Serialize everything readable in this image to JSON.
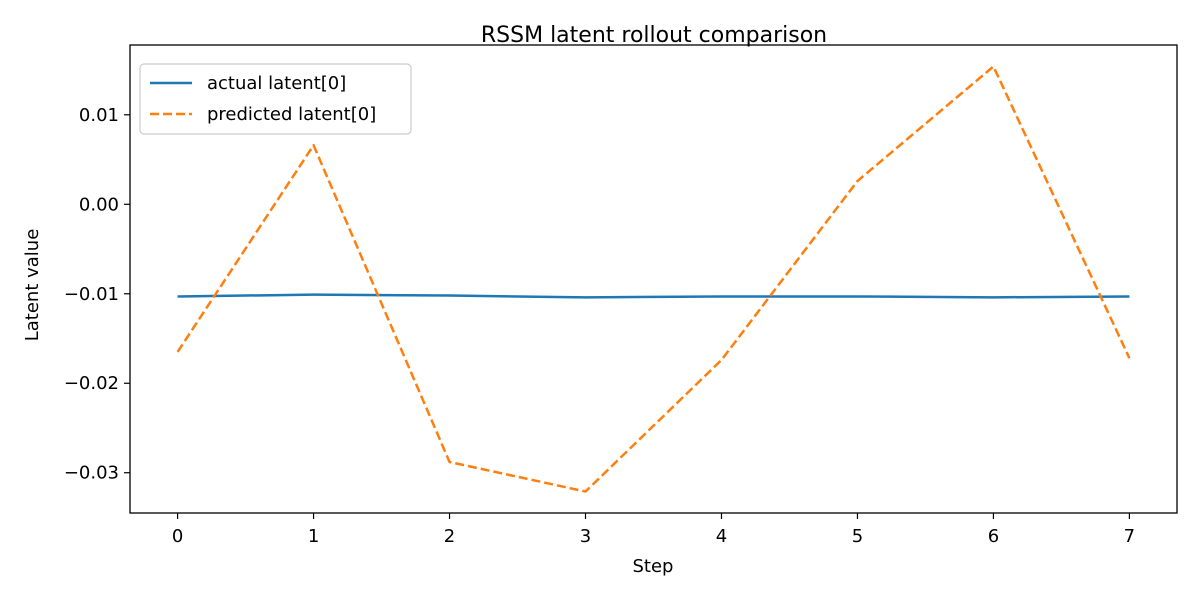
{
  "chart_data": {
    "type": "line",
    "title": "RSSM latent rollout comparison",
    "xlabel": "Step",
    "ylabel": "Latent value",
    "x": [
      0,
      1,
      2,
      3,
      4,
      5,
      6,
      7
    ],
    "xlim": [
      -0.35,
      7.35
    ],
    "ylim": [
      -0.0345,
      0.0178
    ],
    "xticks": [
      0,
      1,
      2,
      3,
      4,
      5,
      6,
      7
    ],
    "xtick_labels": [
      "0",
      "1",
      "2",
      "3",
      "4",
      "5",
      "6",
      "7"
    ],
    "yticks": [
      0.01,
      0.0,
      -0.01,
      -0.02,
      -0.03
    ],
    "ytick_labels": [
      "0.01",
      "0.00",
      "−0.01",
      "−0.02",
      "−0.03"
    ],
    "grid": false,
    "legend_position": "upper-left",
    "series": [
      {
        "name": "actual latent[0]",
        "color": "#1f77b4",
        "style": "solid",
        "values": [
          -0.0103,
          -0.0101,
          -0.0102,
          -0.0104,
          -0.0103,
          -0.0103,
          -0.0104,
          -0.0103
        ]
      },
      {
        "name": "predicted latent[0]",
        "color": "#ff7f0e",
        "style": "dashed",
        "values": [
          -0.0165,
          0.0066,
          -0.0288,
          -0.0321,
          -0.0174,
          0.0026,
          0.0154,
          -0.0172
        ]
      }
    ]
  }
}
